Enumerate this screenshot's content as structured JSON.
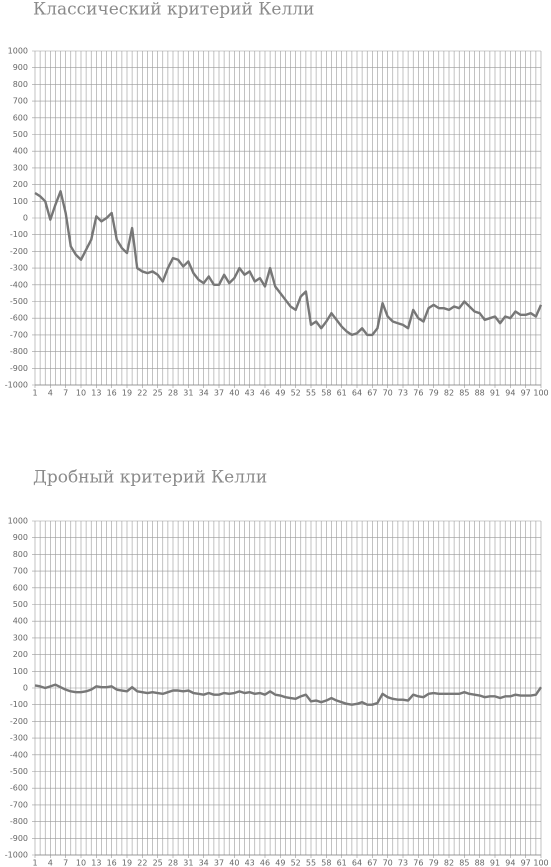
{
  "chart_data": [
    {
      "type": "line",
      "title": "Классический критерий Келли",
      "x": [
        1,
        2,
        3,
        4,
        5,
        6,
        7,
        8,
        9,
        10,
        11,
        12,
        13,
        14,
        15,
        16,
        17,
        18,
        19,
        20,
        21,
        22,
        23,
        24,
        25,
        26,
        27,
        28,
        29,
        30,
        31,
        32,
        33,
        34,
        35,
        36,
        37,
        38,
        39,
        40,
        41,
        42,
        43,
        44,
        45,
        46,
        47,
        48,
        49,
        50,
        51,
        52,
        53,
        54,
        55,
        56,
        57,
        58,
        59,
        60,
        61,
        62,
        63,
        64,
        65,
        66,
        67,
        68,
        69,
        70,
        71,
        72,
        73,
        74,
        75,
        76,
        77,
        78,
        79,
        80,
        81,
        82,
        83,
        84,
        85,
        86,
        87,
        88,
        89,
        90,
        91,
        92,
        93,
        94,
        95,
        96,
        97,
        98,
        99,
        100
      ],
      "series": [
        {
          "color": "#777777",
          "values": [
            150,
            130,
            100,
            -10,
            80,
            160,
            30,
            -170,
            -220,
            -250,
            -190,
            -130,
            10,
            -20,
            0,
            30,
            -130,
            -180,
            -210,
            -60,
            -300,
            -320,
            -330,
            -320,
            -340,
            -380,
            -300,
            -240,
            -250,
            -290,
            -260,
            -330,
            -370,
            -390,
            -350,
            -400,
            -400,
            -340,
            -390,
            -360,
            -300,
            -340,
            -320,
            -380,
            -360,
            -410,
            -300,
            -410,
            -450,
            -490,
            -530,
            -550,
            -470,
            -440,
            -640,
            -620,
            -660,
            -620,
            -570,
            -610,
            -650,
            -680,
            -700,
            -690,
            -660,
            -700,
            -700,
            -660,
            -510,
            -590,
            -620,
            -630,
            -640,
            -660,
            -550,
            -600,
            -620,
            -540,
            -520,
            -540,
            -540,
            -550,
            -530,
            -540,
            -500,
            -530,
            -560,
            -570,
            -610,
            -600,
            -590,
            -630,
            -590,
            -600,
            -560,
            -580,
            -580,
            -570,
            -590,
            -520
          ]
        }
      ],
      "xlim": [
        1,
        100
      ],
      "xticks": [
        1,
        4,
        7,
        10,
        13,
        16,
        19,
        22,
        25,
        28,
        31,
        34,
        37,
        40,
        43,
        46,
        49,
        52,
        55,
        58,
        61,
        64,
        67,
        70,
        73,
        76,
        79,
        82,
        85,
        88,
        91,
        94,
        97,
        100
      ],
      "ylim": [
        -1000,
        1000
      ],
      "yticks": [
        -1000,
        -900,
        -800,
        -700,
        -600,
        -500,
        -400,
        -300,
        -200,
        -100,
        0,
        100,
        200,
        300,
        400,
        500,
        600,
        700,
        800,
        900,
        1000
      ],
      "grid": true
    },
    {
      "type": "line",
      "title": "Дробный критерий Келли",
      "x": [
        1,
        2,
        3,
        4,
        5,
        6,
        7,
        8,
        9,
        10,
        11,
        12,
        13,
        14,
        15,
        16,
        17,
        18,
        19,
        20,
        21,
        22,
        23,
        24,
        25,
        26,
        27,
        28,
        29,
        30,
        31,
        32,
        33,
        34,
        35,
        36,
        37,
        38,
        39,
        40,
        41,
        42,
        43,
        44,
        45,
        46,
        47,
        48,
        49,
        50,
        51,
        52,
        53,
        54,
        55,
        56,
        57,
        58,
        59,
        60,
        61,
        62,
        63,
        64,
        65,
        66,
        67,
        68,
        69,
        70,
        71,
        72,
        73,
        74,
        75,
        76,
        77,
        78,
        79,
        80,
        81,
        82,
        83,
        84,
        85,
        86,
        87,
        88,
        89,
        90,
        91,
        92,
        93,
        94,
        95,
        96,
        97,
        98,
        99,
        100
      ],
      "series": [
        {
          "color": "#777777",
          "values": [
            15,
            10,
            0,
            10,
            20,
            5,
            -10,
            -20,
            -25,
            -25,
            -20,
            -10,
            10,
            5,
            5,
            10,
            -10,
            -15,
            -20,
            5,
            -20,
            -25,
            -30,
            -25,
            -30,
            -35,
            -25,
            -15,
            -15,
            -20,
            -15,
            -30,
            -35,
            -40,
            -30,
            -40,
            -40,
            -30,
            -35,
            -30,
            -20,
            -30,
            -25,
            -35,
            -30,
            -40,
            -20,
            -40,
            -45,
            -55,
            -60,
            -65,
            -50,
            -40,
            -80,
            -75,
            -85,
            -75,
            -60,
            -75,
            -85,
            -95,
            -100,
            -95,
            -85,
            -100,
            -100,
            -90,
            -35,
            -55,
            -65,
            -70,
            -70,
            -75,
            -40,
            -50,
            -55,
            -35,
            -30,
            -35,
            -35,
            -35,
            -35,
            -35,
            -25,
            -35,
            -40,
            -45,
            -55,
            -50,
            -50,
            -60,
            -50,
            -50,
            -40,
            -45,
            -45,
            -45,
            -40,
            5
          ]
        }
      ],
      "xlim": [
        1,
        100
      ],
      "xticks": [
        1,
        4,
        7,
        10,
        13,
        16,
        19,
        22,
        25,
        28,
        31,
        34,
        37,
        40,
        43,
        46,
        49,
        52,
        55,
        58,
        61,
        64,
        67,
        70,
        73,
        76,
        79,
        82,
        85,
        88,
        91,
        94,
        97,
        100
      ],
      "ylim": [
        -1000,
        1000
      ],
      "yticks": [
        -1000,
        -900,
        -800,
        -700,
        -600,
        -500,
        -400,
        -300,
        -200,
        -100,
        0,
        100,
        200,
        300,
        400,
        500,
        600,
        700,
        800,
        900,
        1000
      ],
      "grid": true
    }
  ]
}
